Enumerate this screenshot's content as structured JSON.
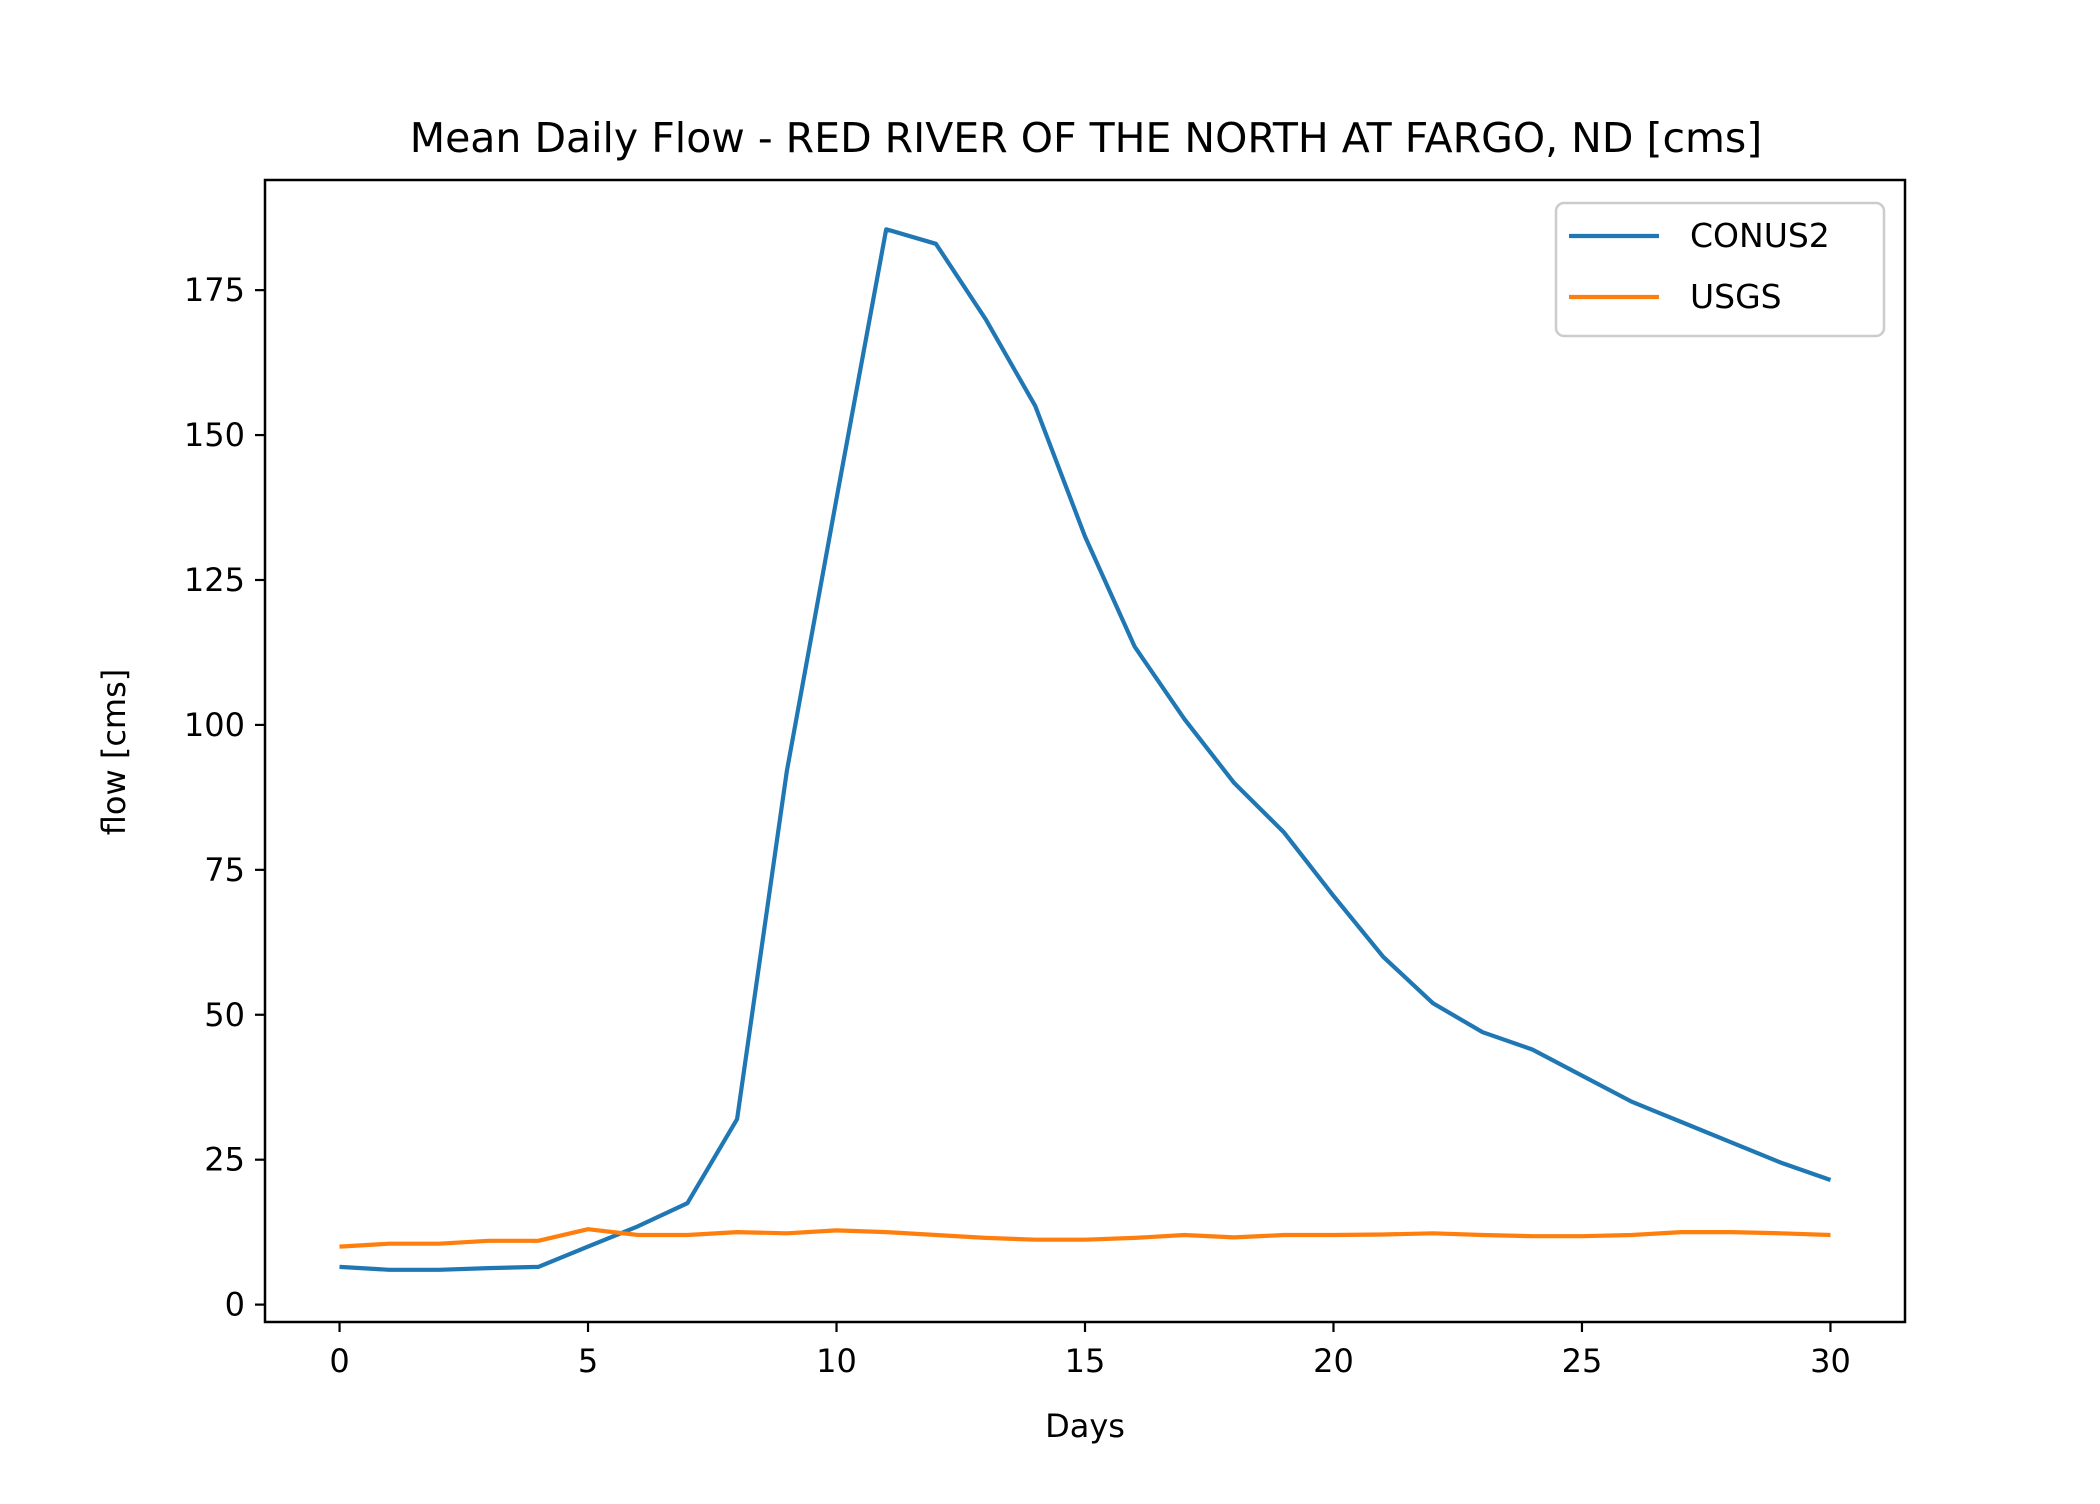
{
  "chart_data": {
    "type": "line",
    "title": "Mean Daily Flow - RED RIVER OF THE NORTH AT FARGO, ND [cms]",
    "xlabel": "Days",
    "ylabel": "flow [cms]",
    "xlim": [
      -1.5,
      31.5
    ],
    "ylim": [
      -3,
      194
    ],
    "xticks": [
      0,
      5,
      10,
      15,
      20,
      25,
      30
    ],
    "yticks": [
      0,
      25,
      50,
      75,
      100,
      125,
      150,
      175
    ],
    "grid": false,
    "legend_position": "upper right",
    "x": [
      0,
      1,
      2,
      3,
      4,
      5,
      6,
      7,
      8,
      9,
      10,
      11,
      12,
      13,
      14,
      15,
      16,
      17,
      18,
      19,
      20,
      21,
      22,
      23,
      24,
      25,
      26,
      27,
      28,
      29,
      30
    ],
    "series": [
      {
        "name": "CONUS2",
        "color": "#1f77b4",
        "values": [
          6.5,
          6.0,
          6.0,
          6.3,
          6.5,
          10.0,
          13.5,
          17.5,
          32.0,
          92.0,
          139.0,
          185.5,
          183.0,
          170.0,
          155.0,
          132.5,
          113.5,
          101.0,
          90.0,
          81.5,
          70.5,
          60.0,
          52.0,
          47.0,
          44.0,
          39.5,
          35.0,
          31.5,
          28.0,
          24.5,
          21.5
        ]
      },
      {
        "name": "USGS",
        "color": "#ff7f0e",
        "values": [
          10.0,
          10.5,
          10.5,
          11.0,
          11.0,
          13.0,
          12.0,
          12.0,
          12.5,
          12.3,
          12.8,
          12.5,
          12.0,
          11.5,
          11.2,
          11.2,
          11.5,
          12.0,
          11.6,
          12.0,
          12.0,
          12.1,
          12.3,
          12.0,
          11.8,
          11.8,
          12.0,
          12.5,
          12.5,
          12.3,
          12.0
        ]
      }
    ]
  }
}
